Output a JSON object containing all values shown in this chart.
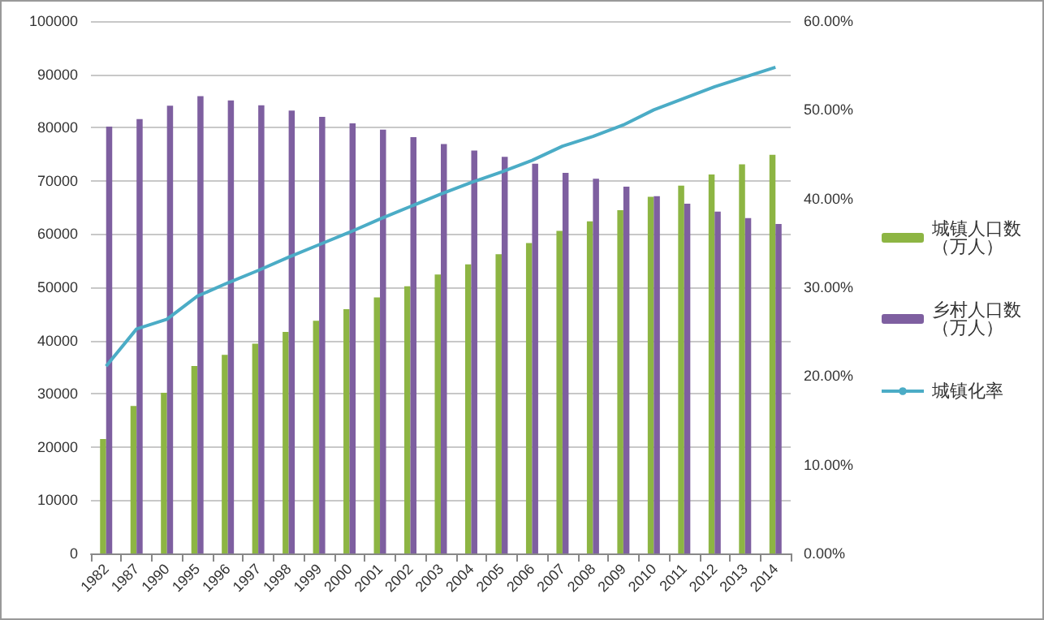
{
  "chart_data": {
    "type": "bar",
    "categories": [
      "1982",
      "1987",
      "1990",
      "1995",
      "1996",
      "1997",
      "1998",
      "1999",
      "2000",
      "2001",
      "2002",
      "2003",
      "2004",
      "2005",
      "2006",
      "2007",
      "2008",
      "2009",
      "2010",
      "2011",
      "2012",
      "2013",
      "2014"
    ],
    "series": [
      {
        "name": "城镇人口数（万人）",
        "color": "#8db543",
        "values": [
          21500,
          27700,
          30200,
          35200,
          37300,
          39400,
          41600,
          43700,
          45900,
          48100,
          50200,
          52400,
          54300,
          56200,
          58300,
          60600,
          62400,
          64500,
          67000,
          69100,
          71200,
          73100,
          74900
        ]
      },
      {
        "name": "乡村人口数（万人）",
        "color": "#7e5fa0",
        "values": [
          80200,
          81600,
          84100,
          85900,
          85100,
          84200,
          83200,
          82000,
          80800,
          79600,
          78200,
          76900,
          75700,
          74500,
          73200,
          71500,
          70400,
          68900,
          67100,
          65700,
          64200,
          63000,
          61900
        ]
      },
      {
        "name": "城镇化率",
        "type": "line",
        "axis": "y2",
        "color": "#4bacc6",
        "values": [
          21.1,
          25.3,
          26.4,
          29,
          30.5,
          31.9,
          33.4,
          34.8,
          36.2,
          37.7,
          39.1,
          40.5,
          41.8,
          43,
          44.3,
          45.9,
          47,
          48.3,
          50,
          51.3,
          52.6,
          53.7,
          54.8
        ]
      }
    ],
    "ylim": [
      0,
      100000
    ],
    "yticks": [
      0,
      10000,
      20000,
      30000,
      40000,
      50000,
      60000,
      70000,
      80000,
      90000,
      100000
    ],
    "y2lim": [
      0,
      60
    ],
    "y2ticks": [
      {
        "value": 0,
        "label": "0.00%"
      },
      {
        "value": 10,
        "label": "10.00%"
      },
      {
        "value": 20,
        "label": "20.00%"
      },
      {
        "value": 30,
        "label": "30.00%"
      },
      {
        "value": 40,
        "label": "40.00%"
      },
      {
        "value": 50,
        "label": "50.00%"
      },
      {
        "value": 60,
        "label": "60.00%"
      }
    ],
    "grid": "y",
    "legend": "right",
    "marker": "none"
  }
}
